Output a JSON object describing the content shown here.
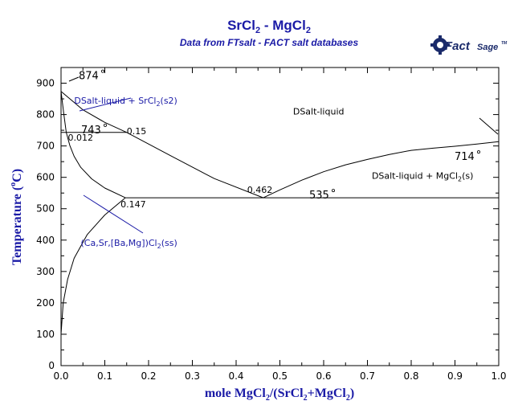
{
  "chart_data": {
    "type": "line",
    "title": "SrCl",
    "title_sub1": "2",
    "title_mid": " - MgCl",
    "title_sub2": "2",
    "subtitle": "Data from FTsalt - FACT salt databases",
    "xlabel": {
      "p1": "mole MgCl",
      "s1": "2",
      "p2": "/(SrCl",
      "s2": "2",
      "p3": "+MgCl",
      "s3": "2",
      "p4": ")"
    },
    "ylabel": {
      "p1": "Temperature (",
      "deg": "o",
      "p2": "C)"
    },
    "xlim": [
      0,
      1
    ],
    "ylim": [
      0,
      950
    ],
    "xticks": [
      "0.0",
      "0.1",
      "0.2",
      "0.3",
      "0.4",
      "0.5",
      "0.6",
      "0.7",
      "0.8",
      "0.9",
      "1.0"
    ],
    "yticks": [
      "0",
      "100",
      "200",
      "300",
      "400",
      "500",
      "600",
      "700",
      "800",
      "900"
    ],
    "lines": [
      {
        "name": "liquidus-srcl2",
        "points": [
          [
            0,
            874
          ],
          [
            0.05,
            815
          ],
          [
            0.1,
            775
          ],
          [
            0.15,
            743
          ]
        ]
      },
      {
        "name": "liquidus-left-upper",
        "points": [
          [
            0.15,
            743
          ],
          [
            0.25,
            669
          ],
          [
            0.35,
            596
          ],
          [
            0.462,
            535
          ]
        ]
      },
      {
        "name": "liquidus-mgcl2",
        "points": [
          [
            0.462,
            535
          ],
          [
            0.5,
            560
          ],
          [
            0.55,
            591
          ],
          [
            0.6,
            618
          ],
          [
            0.65,
            640
          ],
          [
            0.7,
            657
          ],
          [
            0.75,
            673
          ],
          [
            0.8,
            686
          ],
          [
            0.85,
            693
          ],
          [
            0.9,
            699
          ],
          [
            0.95,
            706
          ],
          [
            1.0,
            714
          ]
        ]
      },
      {
        "name": "solidus-upper",
        "points": [
          [
            0,
            874
          ],
          [
            0.006,
            805
          ],
          [
            0.012,
            743
          ]
        ]
      },
      {
        "name": "solvus",
        "points": [
          [
            0.012,
            743
          ],
          [
            0.02,
            702
          ],
          [
            0.03,
            667
          ],
          [
            0.045,
            632
          ],
          [
            0.07,
            595
          ],
          [
            0.1,
            566
          ],
          [
            0.147,
            535
          ]
        ]
      },
      {
        "name": "solidus-lower",
        "points": [
          [
            0,
            100
          ],
          [
            0.005,
            200
          ],
          [
            0.015,
            275
          ],
          [
            0.03,
            342
          ],
          [
            0.06,
            418
          ],
          [
            0.1,
            480
          ],
          [
            0.147,
            535
          ]
        ]
      },
      {
        "name": "peritectic",
        "points": [
          [
            0,
            743
          ],
          [
            0.15,
            743
          ]
        ]
      },
      {
        "name": "eutectic",
        "points": [
          [
            0.147,
            535
          ],
          [
            1.0,
            535
          ]
        ]
      }
    ],
    "point_labels": [
      {
        "text": "0.012",
        "x": 0.012,
        "y": 743
      },
      {
        "text": "0.15",
        "x": 0.15,
        "y": 743
      },
      {
        "text": "0.462",
        "x": 0.462,
        "y": 535
      },
      {
        "text": "0.147",
        "x": 0.147,
        "y": 535
      }
    ],
    "temperature_labels": [
      {
        "text": "874",
        "x": 0.0,
        "y": 874
      },
      {
        "text": "743",
        "x": 0.0,
        "y": 743
      },
      {
        "text": "714",
        "x": 1.0,
        "y": 714
      },
      {
        "text": "535",
        "x": 0.6,
        "y": 535
      }
    ],
    "region_labels": [
      {
        "text": "DSalt-liquid",
        "x": 0.53,
        "y": 800
      },
      {
        "text": "DSalt-liquid + MgCl",
        "sub": "2",
        "tail": "(s)",
        "x": 0.71,
        "y": 595
      },
      {
        "text": "DSalt-liquid + SrCl",
        "sub": "2",
        "tail": "(s2)",
        "x": 0.03,
        "y": 835
      },
      {
        "text": "(Ca,Sr,[Ba,Mg])Cl",
        "sub": "2",
        "tail": "(ss)",
        "x": 0.045,
        "y": 382
      }
    ],
    "grid": false,
    "logo": {
      "main": "Fact",
      "second": "Sage",
      "tm": "TM"
    }
  }
}
